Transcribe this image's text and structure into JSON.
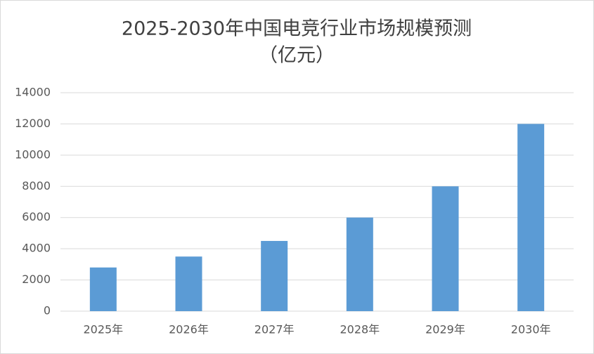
{
  "chart_data": {
    "type": "bar",
    "title": "2025-2030年中国电竞行业市场规模预测",
    "subtitle": "（亿元）",
    "categories": [
      "2025年",
      "2026年",
      "2027年",
      "2028年",
      "2029年",
      "2030年"
    ],
    "values": [
      2800,
      3500,
      4500,
      6000,
      8000,
      12000
    ],
    "color": "#5b9bd5",
    "ylim": [
      0,
      14000
    ],
    "yticks": [
      0,
      2000,
      4000,
      6000,
      8000,
      10000,
      12000,
      14000
    ],
    "grid": true
  }
}
